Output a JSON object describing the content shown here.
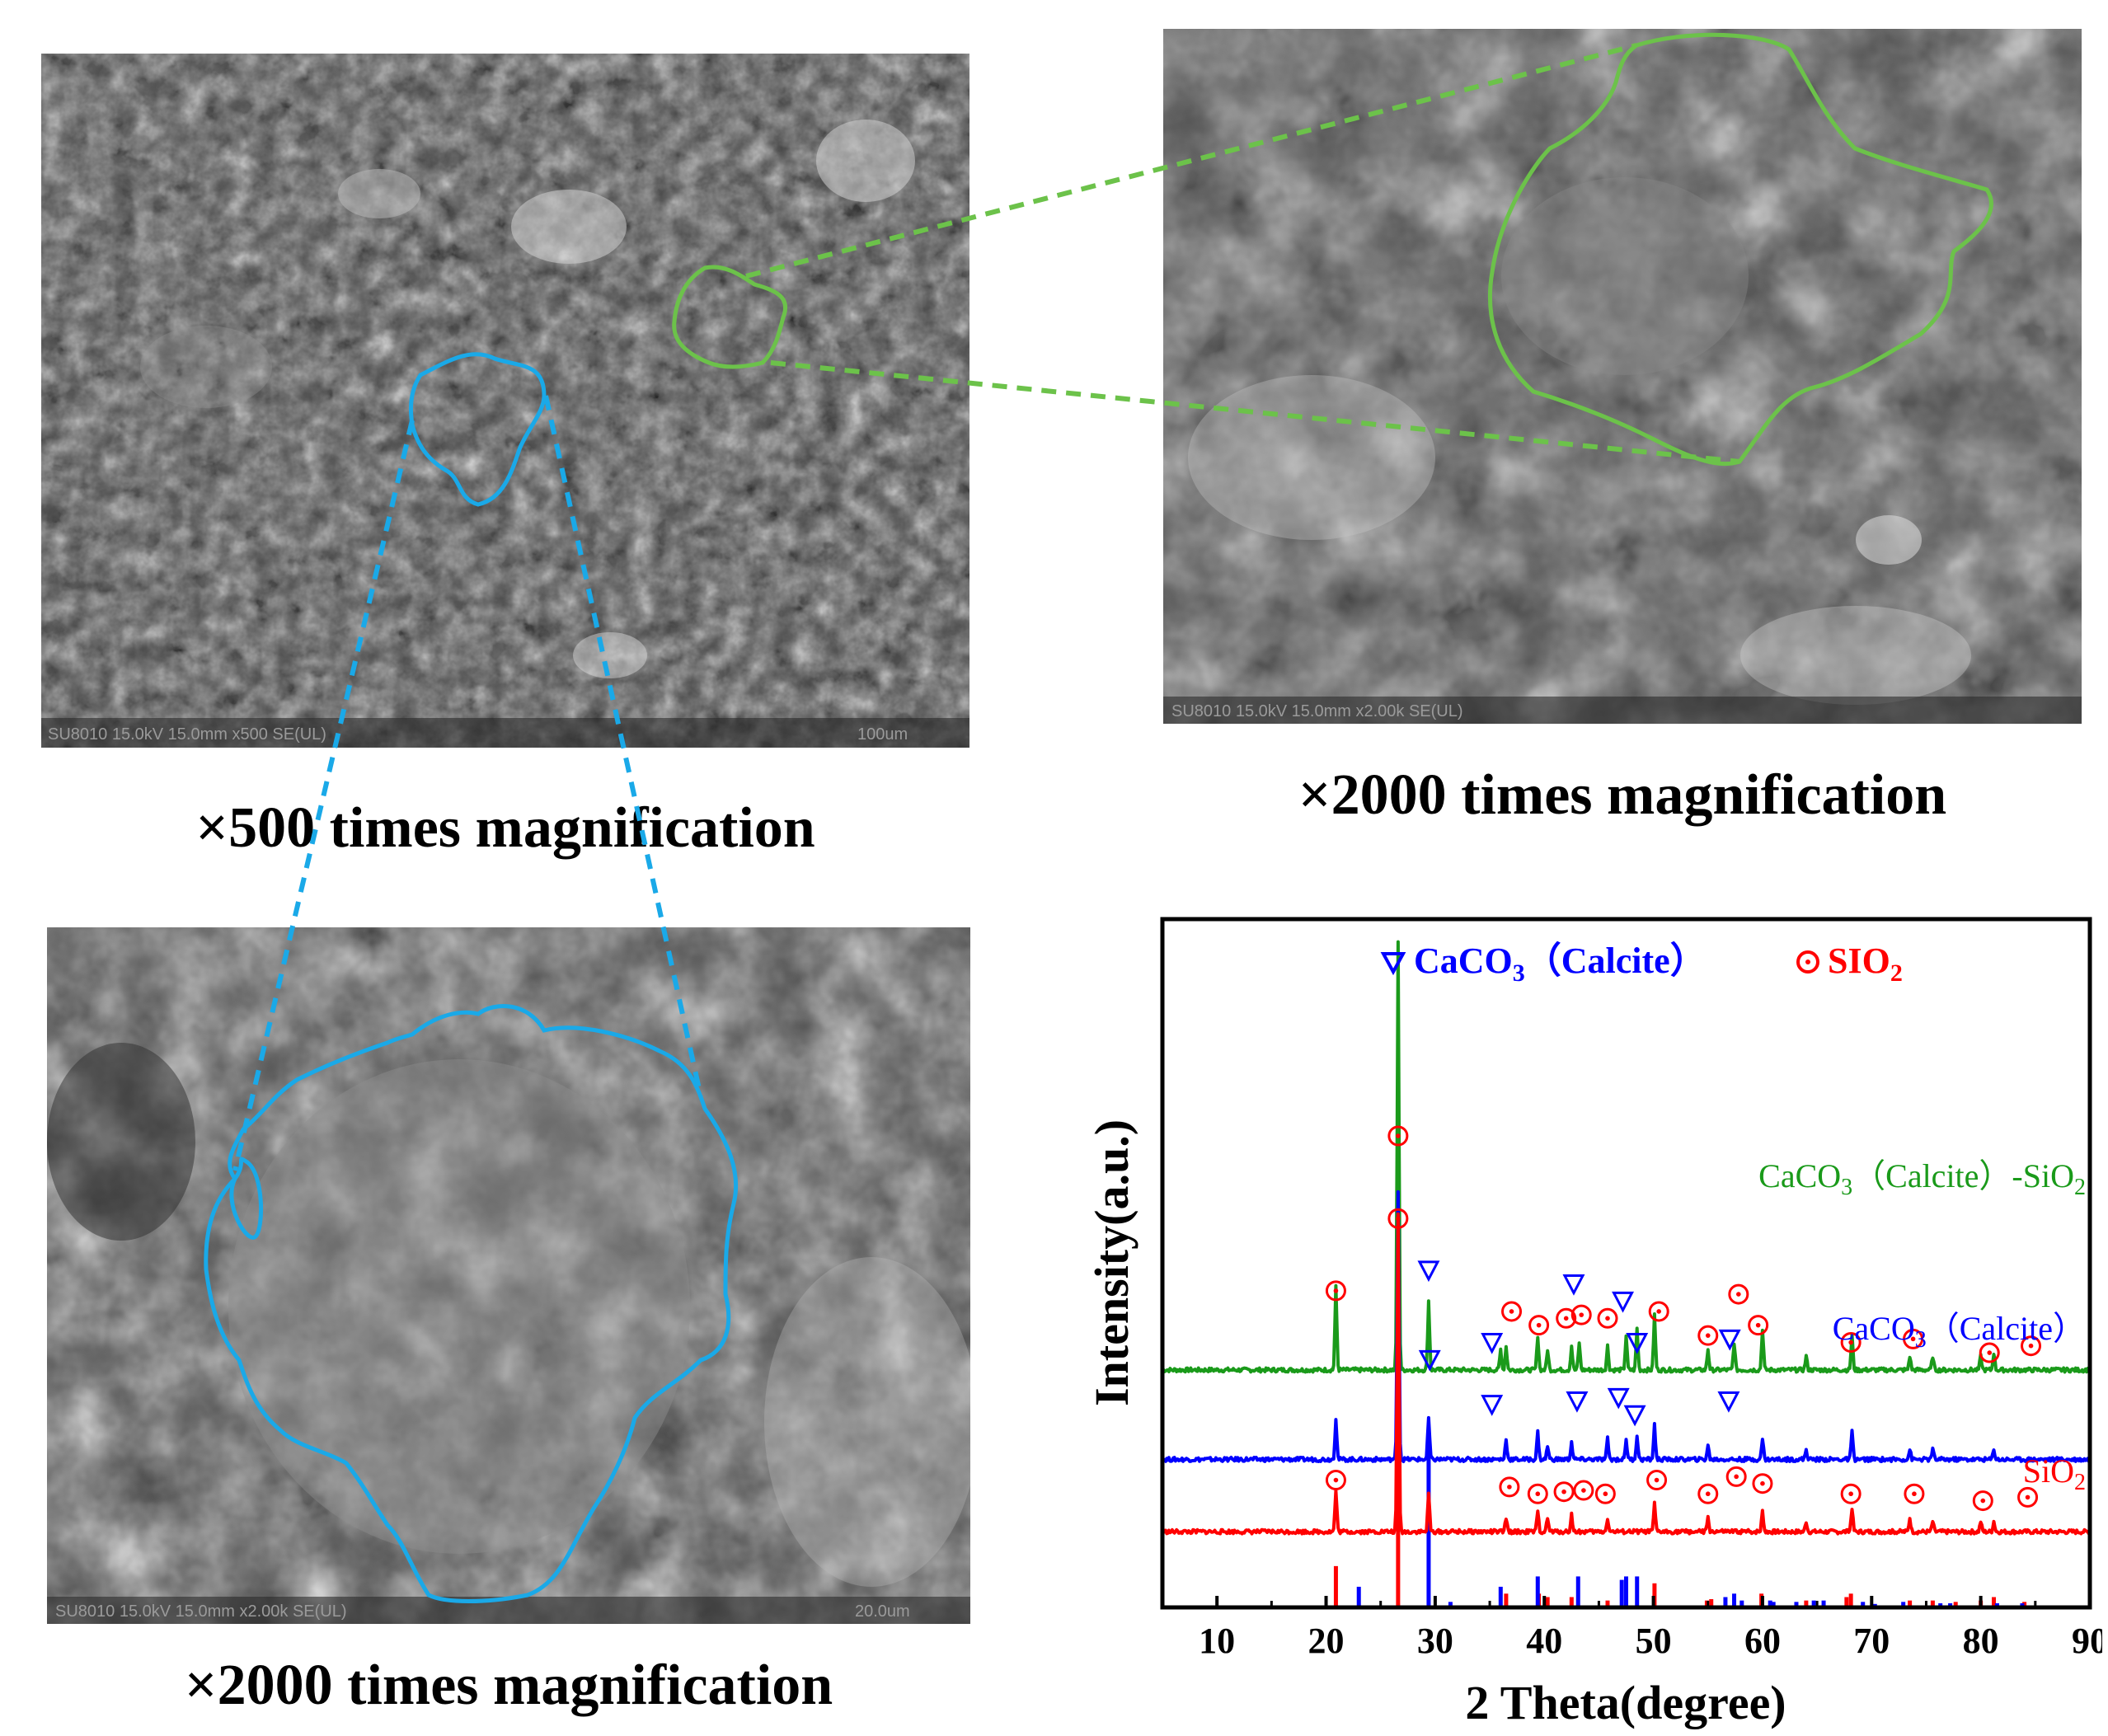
{
  "sem_panels": {
    "low_mag": {
      "caption": "×500 times magnification",
      "footer_label": "SU8010 15.0kV 15.0mm x500 SE(UL)",
      "scale_bar_label": "100um",
      "outline_color": "#6cc24a"
    },
    "high_mag_green": {
      "caption": "×2000 times magnification",
      "footer_label": "SU8010 15.0kV 15.0mm x2.00k SE(UL)",
      "outline_color": "#6cc24a"
    },
    "high_mag_blue": {
      "caption": "×2000 times magnification",
      "footer_label": "SU8010 15.0kV 15.0mm x2.00k SE(UL)",
      "scale_bar_label": "20.0um",
      "outline_color": "#1aa9e8"
    }
  },
  "chart_data": {
    "type": "line",
    "xlabel": "2 Theta(degree)",
    "ylabel": "Intensity(a.u.)",
    "xlim": [
      5,
      90
    ],
    "xticks": [
      10,
      20,
      30,
      40,
      50,
      60,
      70,
      80,
      90
    ],
    "legend": {
      "calcite_label": "CaCO",
      "calcite_sub": "3",
      "calcite_tail": "（Calcite）",
      "sio2_label": "SIO",
      "sio2_sub": "2",
      "calcite_color": "#0000ff",
      "sio2_color": "#ff0000"
    },
    "series": [
      {
        "name": "CaCO3（Calcite）-SiO2",
        "label_parts": [
          "CaCO",
          "3",
          "（Calcite）-SiO",
          "2"
        ],
        "color": "#1a9a1a",
        "baseline": 0.345,
        "peaks": [
          [
            20.9,
            0.12
          ],
          [
            26.6,
            0.62
          ],
          [
            29.4,
            0.1
          ],
          [
            36.0,
            0.03
          ],
          [
            36.5,
            0.035
          ],
          [
            39.4,
            0.05
          ],
          [
            40.3,
            0.03
          ],
          [
            42.5,
            0.035
          ],
          [
            43.2,
            0.04
          ],
          [
            45.8,
            0.035
          ],
          [
            47.5,
            0.05
          ],
          [
            48.5,
            0.06
          ],
          [
            50.1,
            0.08
          ],
          [
            55.0,
            0.03
          ],
          [
            57.4,
            0.04
          ],
          [
            60.0,
            0.06
          ],
          [
            64.0,
            0.02
          ],
          [
            68.2,
            0.05
          ],
          [
            73.5,
            0.02
          ],
          [
            75.6,
            0.02
          ],
          [
            80.0,
            0.02
          ],
          [
            81.2,
            0.025
          ]
        ],
        "calcite_markers": [
          [
            29.4,
            0.49
          ],
          [
            35.2,
            0.385
          ],
          [
            42.7,
            0.47
          ],
          [
            47.2,
            0.445
          ],
          [
            48.5,
            0.385
          ],
          [
            57.0,
            0.39
          ]
        ],
        "sio2_markers": [
          [
            20.9,
            0.46
          ],
          [
            26.6,
            0.685
          ],
          [
            37.0,
            0.43
          ],
          [
            39.5,
            0.41
          ],
          [
            42.0,
            0.42
          ],
          [
            43.4,
            0.425
          ],
          [
            45.8,
            0.42
          ],
          [
            50.5,
            0.43
          ],
          [
            55.0,
            0.395
          ],
          [
            57.8,
            0.455
          ],
          [
            59.6,
            0.41
          ],
          [
            68.1,
            0.385
          ],
          [
            73.8,
            0.39
          ],
          [
            80.8,
            0.37
          ],
          [
            84.6,
            0.38
          ]
        ]
      },
      {
        "name": "CaCO3（Calcite）",
        "label_parts": [
          "CaCO",
          "3",
          "（Calcite）",
          ""
        ],
        "color": "#0000ff",
        "baseline": 0.215,
        "peaks": [
          [
            20.9,
            0.06
          ],
          [
            26.6,
            0.39
          ],
          [
            29.4,
            0.06
          ],
          [
            36.5,
            0.03
          ],
          [
            39.4,
            0.04
          ],
          [
            40.3,
            0.02
          ],
          [
            42.5,
            0.025
          ],
          [
            45.8,
            0.03
          ],
          [
            47.5,
            0.03
          ],
          [
            48.5,
            0.035
          ],
          [
            50.1,
            0.05
          ],
          [
            55.0,
            0.02
          ],
          [
            60.0,
            0.03
          ],
          [
            64.0,
            0.015
          ],
          [
            68.2,
            0.04
          ],
          [
            73.5,
            0.015
          ],
          [
            75.6,
            0.015
          ],
          [
            81.2,
            0.015
          ]
        ],
        "calcite_markers": [
          [
            29.5,
            0.36
          ],
          [
            35.2,
            0.295
          ],
          [
            43.0,
            0.3
          ],
          [
            46.8,
            0.305
          ],
          [
            48.3,
            0.28
          ],
          [
            56.9,
            0.3
          ]
        ],
        "sio2_markers": []
      },
      {
        "name": "SiO2",
        "label_parts": [
          "SiO",
          "2",
          "",
          ""
        ],
        "color": "#ff0000",
        "baseline": 0.11,
        "peaks": [
          [
            20.9,
            0.06
          ],
          [
            26.6,
            0.46
          ],
          [
            29.4,
            0.055
          ],
          [
            36.5,
            0.02
          ],
          [
            39.4,
            0.03
          ],
          [
            40.3,
            0.02
          ],
          [
            42.5,
            0.025
          ],
          [
            45.8,
            0.02
          ],
          [
            50.1,
            0.04
          ],
          [
            55.0,
            0.02
          ],
          [
            60.0,
            0.03
          ],
          [
            64.0,
            0.015
          ],
          [
            68.2,
            0.035
          ],
          [
            73.5,
            0.02
          ],
          [
            75.6,
            0.015
          ],
          [
            80.0,
            0.015
          ],
          [
            81.2,
            0.015
          ]
        ],
        "calcite_markers": [],
        "sio2_markers": [
          [
            20.9,
            0.185
          ],
          [
            26.6,
            0.565
          ],
          [
            36.8,
            0.175
          ],
          [
            39.4,
            0.165
          ],
          [
            41.8,
            0.168
          ],
          [
            43.6,
            0.17
          ],
          [
            45.6,
            0.165
          ],
          [
            50.3,
            0.185
          ],
          [
            55.0,
            0.165
          ],
          [
            57.6,
            0.19
          ],
          [
            60.0,
            0.18
          ],
          [
            68.1,
            0.165
          ],
          [
            73.9,
            0.165
          ],
          [
            80.2,
            0.155
          ],
          [
            84.3,
            0.16
          ]
        ]
      }
    ],
    "reference_sticks": {
      "sio2_color": "#ff0000",
      "calcite_color": "#0000ff",
      "sio2": [
        [
          20.9,
          0.06
        ],
        [
          26.6,
          0.255
        ],
        [
          36.5,
          0.02
        ],
        [
          39.5,
          0.02
        ],
        [
          40.3,
          0.015
        ],
        [
          42.5,
          0.015
        ],
        [
          45.8,
          0.01
        ],
        [
          50.1,
          0.035
        ],
        [
          54.9,
          0.01
        ],
        [
          55.3,
          0.012
        ],
        [
          59.9,
          0.02
        ],
        [
          64.0,
          0.01
        ],
        [
          67.7,
          0.015
        ],
        [
          68.1,
          0.02
        ],
        [
          73.5,
          0.01
        ],
        [
          75.6,
          0.01
        ],
        [
          77.7,
          0.008
        ],
        [
          80.0,
          0.01
        ],
        [
          81.2,
          0.015
        ],
        [
          84.0,
          0.008
        ]
      ],
      "calcite": [
        [
          23.0,
          0.03
        ],
        [
          29.4,
          0.255
        ],
        [
          31.4,
          0.008
        ],
        [
          36.0,
          0.03
        ],
        [
          39.4,
          0.045
        ],
        [
          43.1,
          0.045
        ],
        [
          47.1,
          0.04
        ],
        [
          47.5,
          0.045
        ],
        [
          48.5,
          0.045
        ],
        [
          56.6,
          0.015
        ],
        [
          57.4,
          0.02
        ],
        [
          58.1,
          0.01
        ],
        [
          60.7,
          0.01
        ],
        [
          61.0,
          0.008
        ],
        [
          63.1,
          0.008
        ],
        [
          64.7,
          0.01
        ],
        [
          65.6,
          0.01
        ],
        [
          69.2,
          0.008
        ],
        [
          70.3,
          0.005
        ],
        [
          72.9,
          0.008
        ],
        [
          76.3,
          0.006
        ],
        [
          77.2,
          0.006
        ],
        [
          81.5,
          0.006
        ],
        [
          83.8,
          0.006
        ]
      ]
    }
  }
}
